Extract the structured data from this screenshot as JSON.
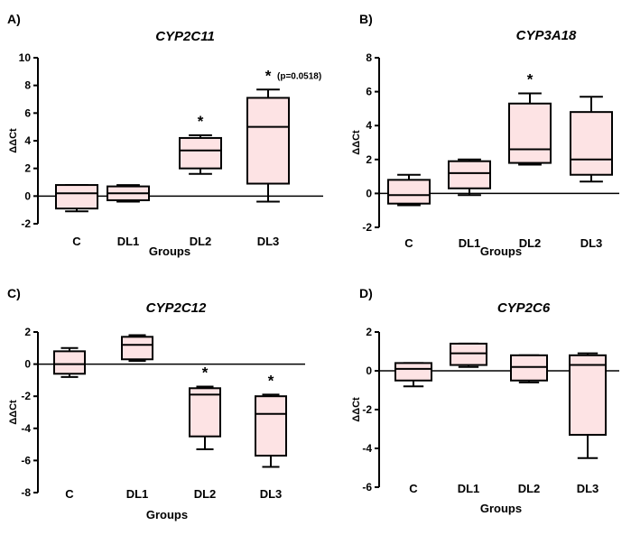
{
  "chart_data": [
    {
      "panel": "A)",
      "type": "boxplot",
      "title": "CYP2C11",
      "xlabel": "Groups",
      "ylabel": "ΔΔCt",
      "ylim": [
        -2,
        10
      ],
      "yticks": [
        -2,
        0,
        2,
        4,
        6,
        8,
        10
      ],
      "categories": [
        "C",
        "DL1",
        "DL2",
        "DL3"
      ],
      "boxes": [
        {
          "min": -1.1,
          "q1": -0.9,
          "median": 0.2,
          "q3": 0.8,
          "max": 0.8
        },
        {
          "min": -0.4,
          "q1": -0.3,
          "median": 0.2,
          "q3": 0.7,
          "max": 0.8
        },
        {
          "min": 1.6,
          "q1": 2.0,
          "median": 3.3,
          "q3": 4.2,
          "max": 4.4
        },
        {
          "min": -0.4,
          "q1": 0.9,
          "median": 5.0,
          "q3": 7.1,
          "max": 7.7
        }
      ],
      "annotations": [
        {
          "category": "DL2",
          "text": "*",
          "note": ""
        },
        {
          "category": "DL3",
          "text": "*",
          "note": "(p=0.0518)"
        }
      ]
    },
    {
      "panel": "B)",
      "type": "boxplot",
      "title": "CYP3A18",
      "xlabel": "Groups",
      "ylabel": "ΔΔCt",
      "ylim": [
        -2,
        8
      ],
      "yticks": [
        -2,
        0,
        2,
        4,
        6,
        8
      ],
      "categories": [
        "C",
        "DL1",
        "DL2",
        "DL3"
      ],
      "boxes": [
        {
          "min": -0.7,
          "q1": -0.6,
          "median": -0.1,
          "q3": 0.8,
          "max": 1.1
        },
        {
          "min": -0.1,
          "q1": 0.3,
          "median": 1.2,
          "q3": 1.9,
          "max": 2.0
        },
        {
          "min": 1.7,
          "q1": 1.8,
          "median": 2.6,
          "q3": 5.3,
          "max": 5.9
        },
        {
          "min": 0.7,
          "q1": 1.1,
          "median": 2.0,
          "q3": 4.8,
          "max": 5.7
        }
      ],
      "annotations": [
        {
          "category": "DL2",
          "text": "*",
          "note": ""
        }
      ]
    },
    {
      "panel": "C)",
      "type": "boxplot",
      "title": "CYP2C12",
      "xlabel": "Groups",
      "ylabel": "ΔΔCt",
      "ylim": [
        -8,
        2
      ],
      "yticks": [
        -8,
        -6,
        -4,
        -2,
        0,
        2
      ],
      "categories": [
        "C",
        "DL1",
        "DL2",
        "DL3"
      ],
      "boxes": [
        {
          "min": -0.8,
          "q1": -0.6,
          "median": 0.0,
          "q3": 0.8,
          "max": 1.0
        },
        {
          "min": 0.2,
          "q1": 0.3,
          "median": 1.2,
          "q3": 1.7,
          "max": 1.8
        },
        {
          "min": -5.3,
          "q1": -4.5,
          "median": -1.9,
          "q3": -1.5,
          "max": -1.4
        },
        {
          "min": -6.4,
          "q1": -5.7,
          "median": -3.1,
          "q3": -2.0,
          "max": -1.9
        }
      ],
      "annotations": [
        {
          "category": "DL2",
          "text": "*",
          "note": ""
        },
        {
          "category": "DL3",
          "text": "*",
          "note": ""
        }
      ]
    },
    {
      "panel": "D)",
      "type": "boxplot",
      "title": "CYP2C6",
      "xlabel": "Groups",
      "ylabel": "ΔΔCt",
      "ylim": [
        -6,
        2
      ],
      "yticks": [
        -6,
        -4,
        -2,
        0,
        2
      ],
      "categories": [
        "C",
        "DL1",
        "DL2",
        "DL3"
      ],
      "boxes": [
        {
          "min": -0.8,
          "q1": -0.5,
          "median": 0.1,
          "q3": 0.4,
          "max": 0.4
        },
        {
          "min": 0.2,
          "q1": 0.3,
          "median": 0.9,
          "q3": 1.4,
          "max": 1.4
        },
        {
          "min": -0.6,
          "q1": -0.5,
          "median": 0.2,
          "q3": 0.8,
          "max": 0.8
        },
        {
          "min": -4.5,
          "q1": -3.3,
          "median": 0.3,
          "q3": 0.8,
          "max": 0.9
        }
      ],
      "annotations": []
    }
  ],
  "colors": {
    "box_fill": "#fde3e4",
    "stroke": "#000000"
  }
}
